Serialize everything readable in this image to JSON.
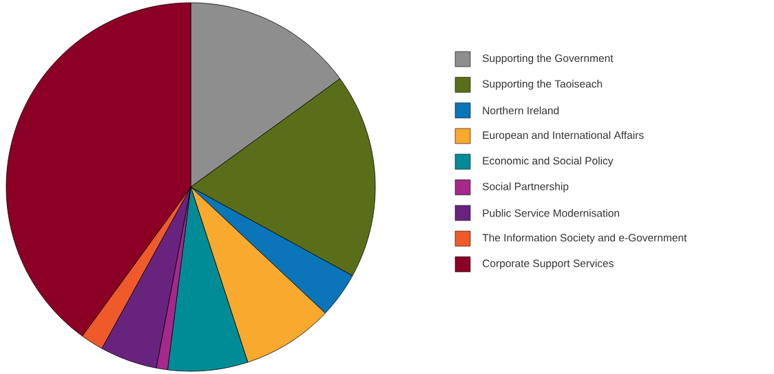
{
  "chart_data": {
    "type": "pie",
    "categories": [
      "Supporting the Government",
      "Supporting the Taoiseach",
      "Northern Ireland",
      "European and International Affairs",
      "Economic and Social Policy",
      "Social Partnership",
      "Public Service Modernisation",
      "The Information Society and e-Government",
      "Corporate Support Services"
    ],
    "values": [
      15,
      18,
      4,
      8,
      7,
      1,
      5,
      2,
      40
    ],
    "colors": [
      "#8e8e8e",
      "#5a6e19",
      "#0a75b8",
      "#f9a92e",
      "#008c96",
      "#a5288a",
      "#68237f",
      "#ef5a2a",
      "#8c0026"
    ],
    "legend": "right"
  }
}
